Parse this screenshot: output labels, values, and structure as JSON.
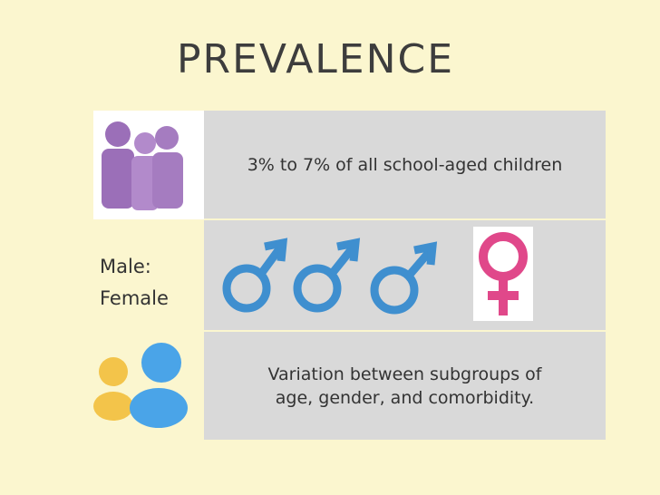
{
  "title": "PREVALENCE",
  "rows": [
    {
      "text": [
        "3% to 7% of all school-aged children"
      ]
    },
    {
      "label": [
        "Male:",
        "Female"
      ]
    },
    {
      "text": [
        "Variation between subgroups of",
        "age, gender, and comorbidity."
      ]
    }
  ]
}
